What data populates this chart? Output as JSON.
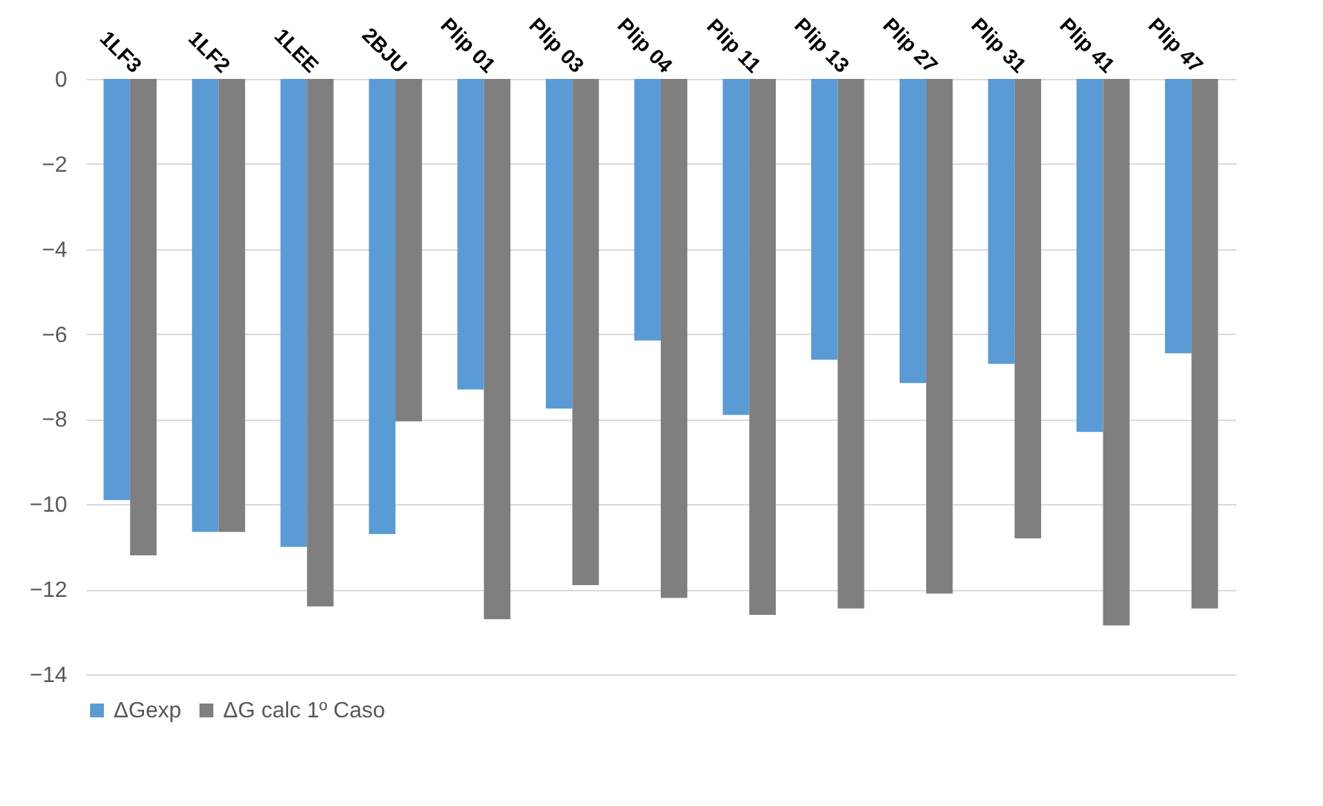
{
  "chart_data": {
    "type": "bar",
    "categories": [
      "1LF3",
      "1LF2",
      "1LEE",
      "2BJU",
      "Plip 01",
      "Plip 03",
      "Plip 04",
      "Plip 11",
      "Plip 13",
      "Plip 27",
      "Plip 31",
      "Plip 41",
      "Plip 47"
    ],
    "series": [
      {
        "name": "ΔGexp",
        "color": "#5b9bd5",
        "values": [
          -9.9,
          -10.65,
          -11.0,
          -10.7,
          -7.3,
          -7.75,
          -6.15,
          -7.9,
          -6.6,
          -7.15,
          -6.7,
          -8.3,
          -6.45
        ]
      },
      {
        "name": "ΔG calc 1º Caso",
        "color": "#7f7f7f",
        "values": [
          -11.2,
          -10.65,
          -12.4,
          -8.05,
          -12.7,
          -11.9,
          -12.2,
          -12.6,
          -12.45,
          -12.1,
          -10.8,
          -12.85,
          -12.45
        ]
      }
    ],
    "ylim": [
      -14,
      0
    ],
    "yticks": [
      0,
      -2,
      -4,
      -6,
      -8,
      -10,
      -12,
      -14
    ],
    "grid": "y",
    "legend": "bottom"
  }
}
